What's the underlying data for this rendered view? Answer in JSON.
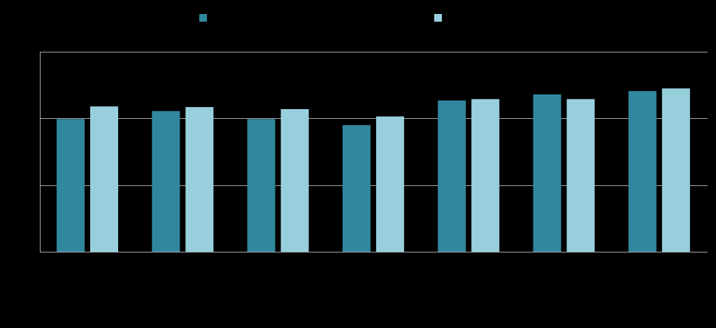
{
  "chart_data": {
    "type": "bar",
    "title": "",
    "xlabel": "",
    "ylabel": "",
    "categories": [
      "",
      "",
      "",
      "",
      "",
      "",
      ""
    ],
    "series": [
      {
        "color": "#31879e",
        "values": [
          1.99,
          2.11,
          1.99,
          1.9,
          2.27,
          2.36,
          2.41
        ]
      },
      {
        "color": "#98cfdd",
        "values": [
          2.18,
          2.17,
          2.14,
          2.03,
          2.29,
          2.29,
          2.45
        ]
      }
    ],
    "ylim": [
      0,
      3
    ],
    "yticks": [
      0,
      1,
      2,
      3
    ],
    "grid": true,
    "legend_position": "top",
    "colors": {
      "background": "#000000",
      "gridline": "#aaaaaa"
    }
  }
}
